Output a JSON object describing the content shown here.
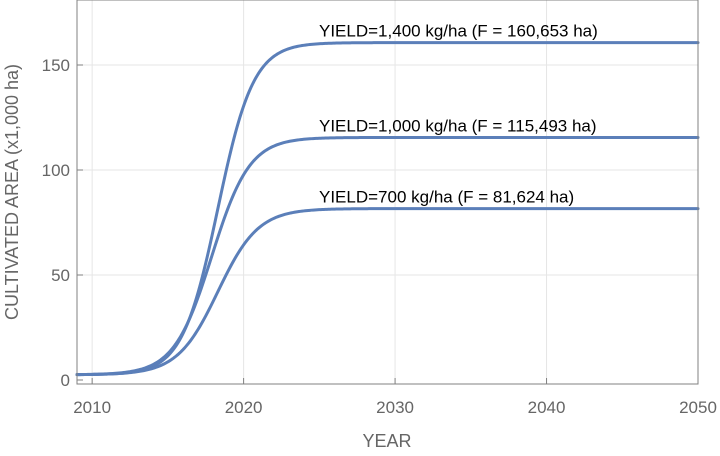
{
  "chart_data": {
    "type": "line",
    "title": "",
    "xlabel": "YEAR",
    "ylabel": "CULTIVATED AREA (x1,000 ha)",
    "xlim": [
      2009,
      2050
    ],
    "ylim": [
      0,
      180
    ],
    "xticks": [
      2010,
      2020,
      2030,
      2040,
      2050
    ],
    "yticks": [
      0,
      50,
      100,
      150
    ],
    "grid": true,
    "line_color": "#5b7fb9",
    "series": [
      {
        "name": "YIELD=1,400 kg/ha (F = 160,653 ha)",
        "logistic": {
          "start": 2.5,
          "asymptote": 160.653,
          "midpoint": 2018.3,
          "rate": 0.85
        },
        "annotation": "YIELD=1,400 kg/ha (F = 160,653 ha)"
      },
      {
        "name": "YIELD=1,000 kg/ha (F = 115,493 ha)",
        "logistic": {
          "start": 2.5,
          "asymptote": 115.493,
          "midpoint": 2017.9,
          "rate": 0.8
        },
        "annotation": "YIELD=1,000 kg/ha (F = 115,493 ha)"
      },
      {
        "name": "YIELD=700 kg/ha (F = 81,624 ha)",
        "logistic": {
          "start": 2.5,
          "asymptote": 81.624,
          "midpoint": 2018.3,
          "rate": 0.75
        },
        "annotation": "YIELD=700 kg/ha (F = 81,624 ha)"
      }
    ]
  }
}
